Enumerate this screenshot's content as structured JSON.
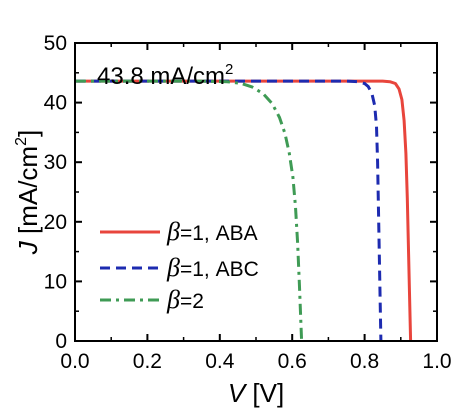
{
  "chart_data": {
    "type": "line",
    "annotation": {
      "value": "43.8 mA/cm",
      "sup": "2"
    },
    "xlabel": {
      "var": "V",
      "unit": " [V]"
    },
    "ylabel": {
      "var": "J",
      "unit": " [mA/cm",
      "sup": "2",
      "close": "]"
    },
    "xlim": [
      0.0,
      1.0
    ],
    "ylim": [
      0,
      50
    ],
    "xticks": [
      0.0,
      0.2,
      0.4,
      0.6,
      0.8,
      1.0
    ],
    "xtick_labels": [
      "0.0",
      "0.2",
      "0.4",
      "0.6",
      "0.8",
      "1.0"
    ],
    "yticks": [
      0,
      10,
      20,
      30,
      40,
      50
    ],
    "ytick_labels": [
      "0",
      "10",
      "20",
      "30",
      "40",
      "50"
    ],
    "grid": false,
    "legend_position": "bottom-left",
    "series": [
      {
        "name": "=1, ABA",
        "greek": "β",
        "color": "#e8453c",
        "dash": "solid",
        "points": [
          [
            0.0,
            43.6
          ],
          [
            0.7,
            43.6
          ],
          [
            0.8,
            43.6
          ],
          [
            0.85,
            43.6
          ],
          [
            0.87,
            43.5
          ],
          [
            0.885,
            43.2
          ],
          [
            0.895,
            42.3
          ],
          [
            0.903,
            40.5
          ],
          [
            0.909,
            37.0
          ],
          [
            0.914,
            31.5
          ],
          [
            0.918,
            24.0
          ],
          [
            0.921,
            16.0
          ],
          [
            0.924,
            8.0
          ],
          [
            0.927,
            0.0
          ]
        ]
      },
      {
        "name": "=1, ABC",
        "greek": "β",
        "color": "#1d2bb0",
        "dash": "dashed",
        "points": [
          [
            0.0,
            43.6
          ],
          [
            0.65,
            43.6
          ],
          [
            0.75,
            43.6
          ],
          [
            0.78,
            43.5
          ],
          [
            0.8,
            43.2
          ],
          [
            0.81,
            42.7
          ],
          [
            0.82,
            41.6
          ],
          [
            0.828,
            39.5
          ],
          [
            0.833,
            36.0
          ],
          [
            0.836,
            30.0
          ],
          [
            0.839,
            20.0
          ],
          [
            0.842,
            10.0
          ],
          [
            0.845,
            0.0
          ]
        ]
      },
      {
        "name": "=2",
        "greek": "β",
        "color": "#3f9b55",
        "dash": "dashdot",
        "points": [
          [
            0.0,
            43.6
          ],
          [
            0.35,
            43.6
          ],
          [
            0.42,
            43.5
          ],
          [
            0.46,
            43.2
          ],
          [
            0.49,
            42.6
          ],
          [
            0.52,
            41.5
          ],
          [
            0.545,
            39.8
          ],
          [
            0.565,
            37.5
          ],
          [
            0.58,
            34.8
          ],
          [
            0.592,
            31.5
          ],
          [
            0.602,
            27.5
          ],
          [
            0.609,
            22.5
          ],
          [
            0.615,
            16.5
          ],
          [
            0.62,
            9.5
          ],
          [
            0.624,
            3.0
          ],
          [
            0.626,
            0.0
          ]
        ]
      }
    ]
  }
}
